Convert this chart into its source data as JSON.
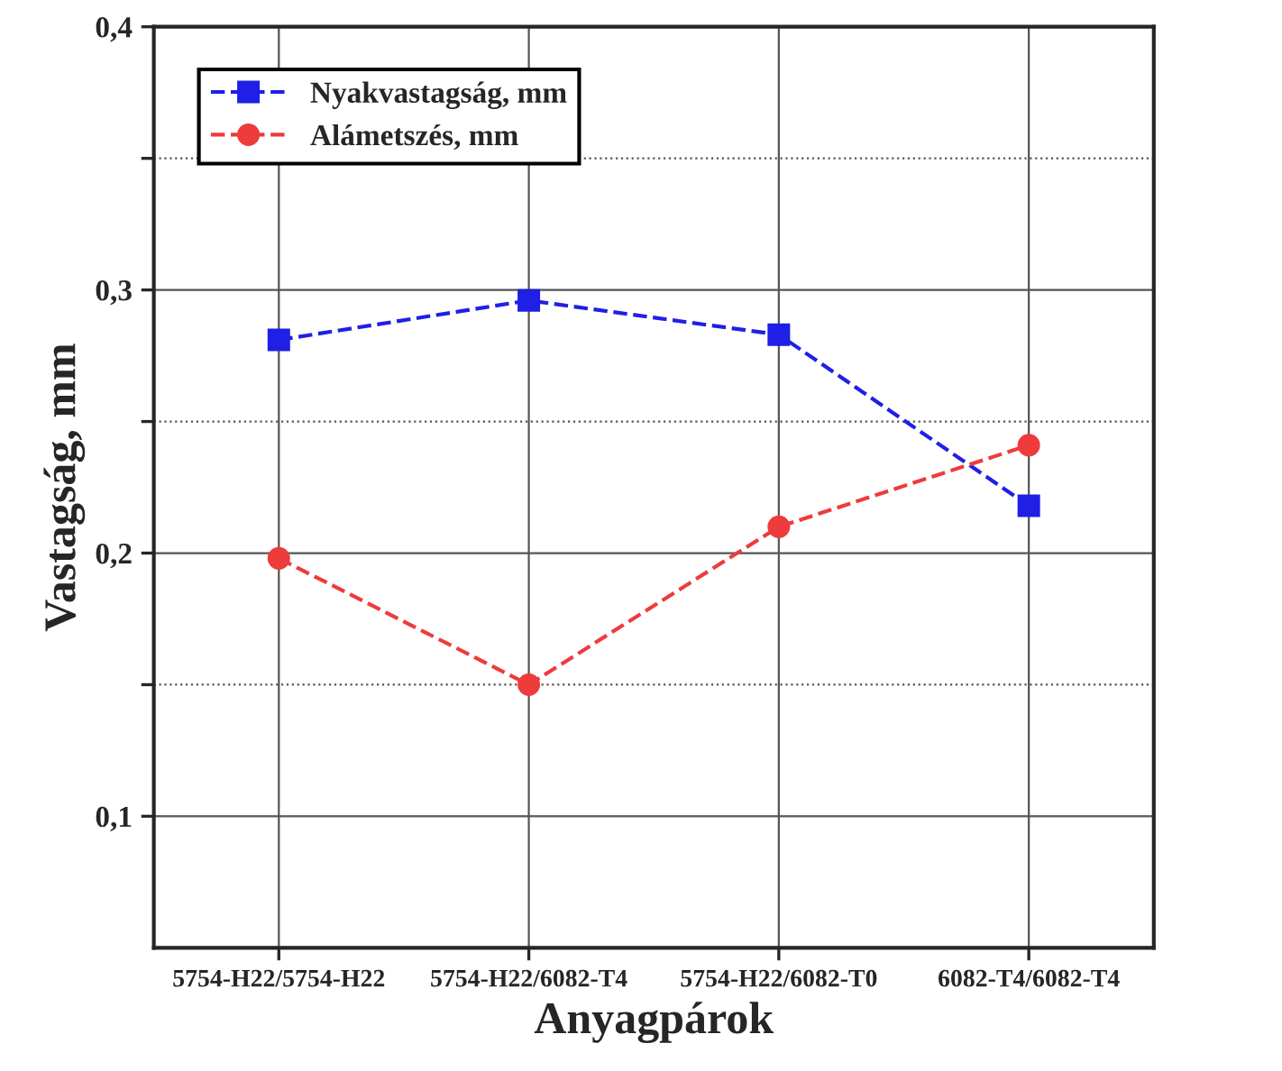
{
  "chart_data": {
    "type": "line",
    "xlabel": "Anyagpárok",
    "ylabel": "Vastagság, mm",
    "categories": [
      "5754-H22/5754-H22",
      "5754-H22/6082-T4",
      "5754-H22/6082-T0",
      "6082-T4/6082-T4"
    ],
    "series": [
      {
        "name": "Nyakvastagság, mm",
        "color": "#1f1fe6",
        "marker": "square",
        "values": [
          0.281,
          0.296,
          0.283,
          0.218
        ]
      },
      {
        "name": "Alámetszés, mm",
        "color": "#ee3b3b",
        "marker": "circle",
        "values": [
          0.198,
          0.15,
          0.21,
          0.241
        ]
      }
    ],
    "ylim": [
      0.05,
      0.4
    ],
    "yticks": [
      {
        "value": 0.1,
        "label": "0,1"
      },
      {
        "value": 0.15,
        "label": null
      },
      {
        "value": 0.2,
        "label": "0,2"
      },
      {
        "value": 0.25,
        "label": null
      },
      {
        "value": 0.3,
        "label": "0,3"
      },
      {
        "value": 0.35,
        "label": null
      },
      {
        "value": 0.4,
        "label": "0,4"
      }
    ],
    "grid": true,
    "legend": "top left",
    "line_style": "dashed"
  }
}
